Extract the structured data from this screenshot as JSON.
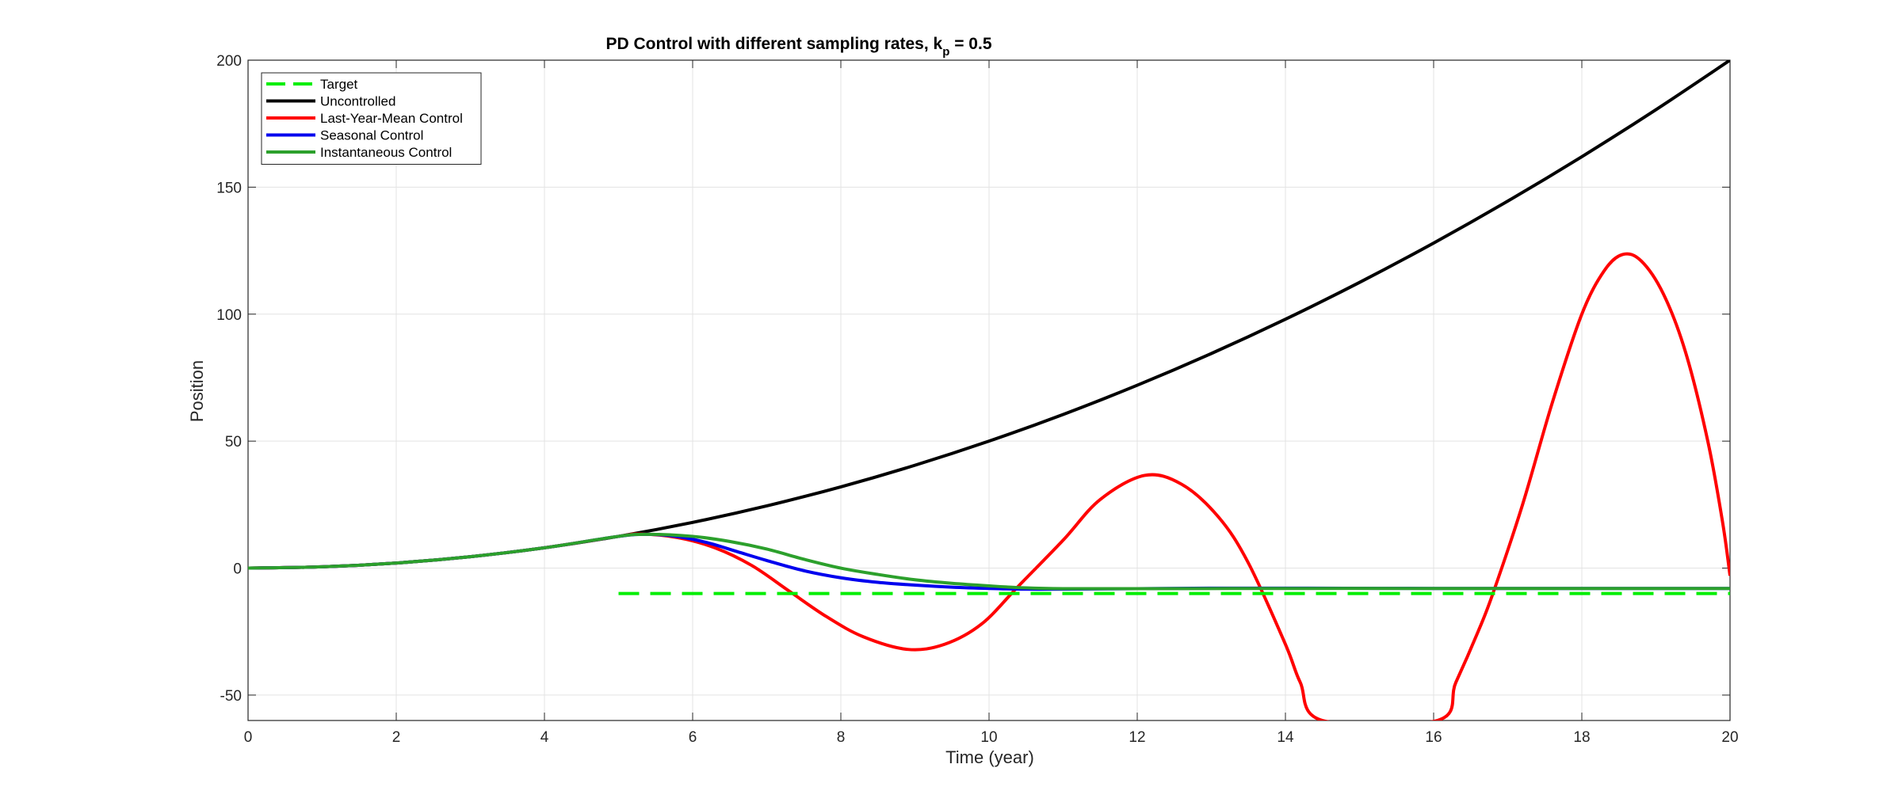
{
  "chart_data": {
    "type": "line",
    "title": "PD Control with different sampling rates, k",
    "title_subscript": "p",
    "title_suffix": " = 0.5",
    "xlabel": "Time (year)",
    "ylabel": "Position",
    "xlim": [
      0,
      20
    ],
    "ylim": [
      -60,
      200
    ],
    "xticks": [
      0,
      2,
      4,
      6,
      8,
      10,
      12,
      14,
      16,
      18,
      20
    ],
    "yticks": [
      -50,
      0,
      50,
      100,
      150,
      200
    ],
    "grid": true,
    "box": true,
    "legend_position": "top-left",
    "series": [
      {
        "name": "Target",
        "color": "#00ee00",
        "dash": "dashed",
        "points": [
          [
            5,
            -10
          ],
          [
            20,
            -10
          ]
        ]
      },
      {
        "name": "Uncontrolled",
        "color": "#000000",
        "dash": "solid",
        "points": [
          [
            0,
            0
          ],
          [
            1,
            0.5
          ],
          [
            2,
            2
          ],
          [
            3,
            4.5
          ],
          [
            4,
            8
          ],
          [
            5,
            12.5
          ],
          [
            6,
            18
          ],
          [
            7,
            24.5
          ],
          [
            8,
            32
          ],
          [
            9,
            40.5
          ],
          [
            10,
            50
          ],
          [
            11,
            60.5
          ],
          [
            12,
            72
          ],
          [
            13,
            84.5
          ],
          [
            14,
            98
          ],
          [
            15,
            112.5
          ],
          [
            16,
            128
          ],
          [
            17,
            144.5
          ],
          [
            18,
            162
          ],
          [
            19,
            180.5
          ],
          [
            20,
            200
          ]
        ]
      },
      {
        "name": "Last-Year-Mean Control",
        "color": "#ff0000",
        "dash": "solid",
        "points": [
          [
            0,
            0
          ],
          [
            1,
            0.5
          ],
          [
            2,
            2
          ],
          [
            3,
            4.5
          ],
          [
            4,
            8
          ],
          [
            5,
            12.5
          ],
          [
            5.3,
            13.4
          ],
          [
            5.8,
            12
          ],
          [
            6.3,
            8
          ],
          [
            6.8,
            1
          ],
          [
            7.3,
            -9
          ],
          [
            7.8,
            -19
          ],
          [
            8.3,
            -27
          ],
          [
            8.9,
            -32
          ],
          [
            9.4,
            -30
          ],
          [
            9.9,
            -22
          ],
          [
            10.4,
            -7
          ],
          [
            11,
            11
          ],
          [
            11.5,
            27
          ],
          [
            12.1,
            36.5
          ],
          [
            12.6,
            33
          ],
          [
            13.1,
            20
          ],
          [
            13.5,
            2
          ],
          [
            14,
            -30
          ],
          [
            14.2,
            -45
          ],
          [
            14.5,
            -60
          ],
          [
            16.05,
            -60
          ],
          [
            16.3,
            -45
          ],
          [
            16.6,
            -25
          ],
          [
            16.8,
            -10
          ],
          [
            17.2,
            25
          ],
          [
            17.6,
            65
          ],
          [
            18,
            100
          ],
          [
            18.3,
            117
          ],
          [
            18.55,
            123.5
          ],
          [
            18.8,
            121
          ],
          [
            19.1,
            108
          ],
          [
            19.4,
            85
          ],
          [
            19.7,
            50
          ],
          [
            19.9,
            18
          ],
          [
            20,
            -3
          ]
        ]
      },
      {
        "name": "Seasonal Control",
        "color": "#0000ee",
        "dash": "solid",
        "points": [
          [
            0,
            0
          ],
          [
            1,
            0.5
          ],
          [
            2,
            2
          ],
          [
            3,
            4.5
          ],
          [
            4,
            8
          ],
          [
            5,
            12.5
          ],
          [
            5.4,
            13.3
          ],
          [
            5.8,
            12.4
          ],
          [
            6.2,
            10
          ],
          [
            6.6,
            6.5
          ],
          [
            7,
            3
          ],
          [
            7.5,
            -1
          ],
          [
            8,
            -3.8
          ],
          [
            8.5,
            -5.6
          ],
          [
            9,
            -6.7
          ],
          [
            9.5,
            -7.5
          ],
          [
            10,
            -8
          ],
          [
            10.5,
            -8.3
          ],
          [
            11,
            -8.3
          ],
          [
            12,
            -8.1
          ],
          [
            13,
            -7.9
          ],
          [
            14,
            -7.9
          ],
          [
            16,
            -8
          ],
          [
            18,
            -8
          ],
          [
            20,
            -8
          ]
        ]
      },
      {
        "name": "Instantaneous Control",
        "color": "#2ca02c",
        "dash": "solid",
        "points": [
          [
            0,
            0
          ],
          [
            1,
            0.5
          ],
          [
            2,
            2
          ],
          [
            3,
            4.5
          ],
          [
            4,
            8
          ],
          [
            5,
            12.5
          ],
          [
            5.4,
            13.3
          ],
          [
            6,
            12.5
          ],
          [
            6.5,
            10.5
          ],
          [
            7,
            7.5
          ],
          [
            7.5,
            3.5
          ],
          [
            8,
            0
          ],
          [
            8.5,
            -2.5
          ],
          [
            9,
            -4.6
          ],
          [
            9.5,
            -6
          ],
          [
            10,
            -7
          ],
          [
            10.5,
            -7.8
          ],
          [
            11,
            -8.1
          ],
          [
            12,
            -8.1
          ],
          [
            14,
            -8
          ],
          [
            16,
            -8
          ],
          [
            18,
            -8
          ],
          [
            20,
            -8
          ]
        ]
      }
    ]
  }
}
